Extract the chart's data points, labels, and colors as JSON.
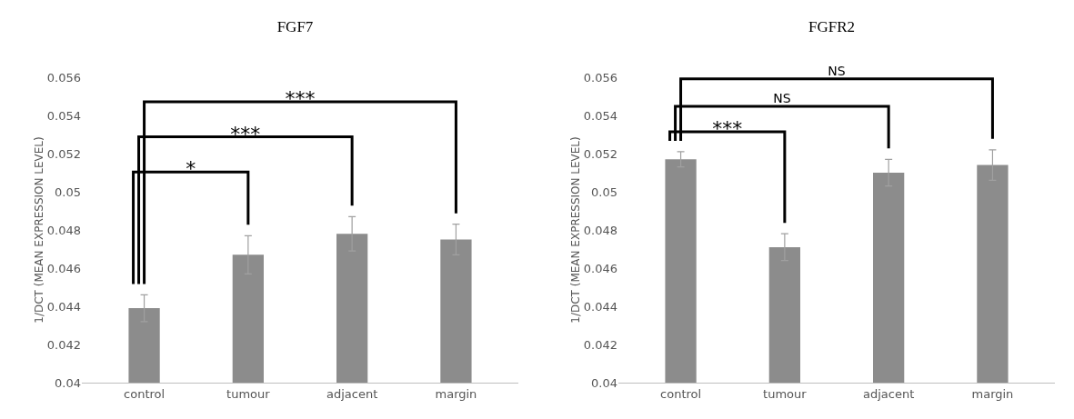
{
  "chart_data": [
    {
      "type": "bar",
      "title": "FGF7",
      "ylabel": "1/DCT (MEAN EXPRESSION LEVEL)",
      "categories": [
        "control",
        "tumour",
        "adjacent",
        "margin"
      ],
      "values": [
        0.0439,
        0.0467,
        0.0478,
        0.0475
      ],
      "errors": [
        0.0007,
        0.001,
        0.0009,
        0.0008
      ],
      "color": "#8c8c8c",
      "ylim": [
        0.04,
        0.056
      ],
      "yticks": [
        0.04,
        0.042,
        0.044,
        0.046,
        0.048,
        0.05,
        0.052,
        0.054,
        0.056
      ],
      "annotations": [
        "*",
        "***",
        "***"
      ]
    },
    {
      "type": "bar",
      "title": "FGFR2",
      "ylabel": "1/DCT (MEAN EXPRESSION LEVEL)",
      "categories": [
        "control",
        "tumour",
        "adjacent",
        "margin"
      ],
      "values": [
        0.0517,
        0.0471,
        0.051,
        0.0514
      ],
      "errors": [
        0.0004,
        0.0007,
        0.0007,
        0.0008
      ],
      "color": "#8c8c8c",
      "ylim": [
        0.04,
        0.056
      ],
      "yticks": [
        0.04,
        0.042,
        0.044,
        0.046,
        0.048,
        0.05,
        0.052,
        0.054,
        0.056
      ],
      "annotations": [
        "***",
        "NS",
        "NS"
      ]
    }
  ]
}
